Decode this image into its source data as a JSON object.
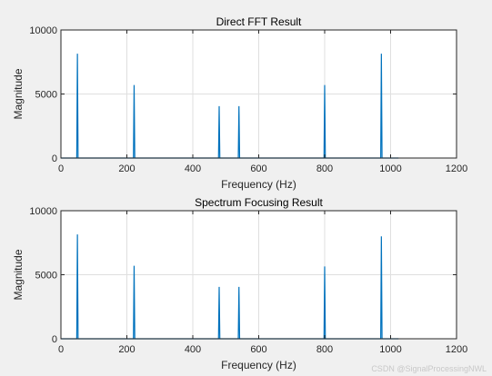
{
  "figure": {
    "background": "#f0f0f0",
    "axes_background": "#ffffff",
    "line_color": "#0072bd",
    "grid_color": "#dfdfdf"
  },
  "watermark": "CSDN @SignalProcessingNWL",
  "chart_data": [
    {
      "type": "line",
      "title": "Direct FFT Result",
      "xlabel": "Frequency (Hz)",
      "ylabel": "Magnitude",
      "xlim": [
        0,
        1200
      ],
      "ylim": [
        0,
        10000
      ],
      "xticks": [
        0,
        200,
        400,
        600,
        800,
        1000,
        1200
      ],
      "yticks": [
        0,
        5000,
        10000
      ],
      "xtick_labels": [
        "0",
        "200",
        "400",
        "600",
        "800",
        "1000",
        "1200"
      ],
      "ytick_labels": [
        "0",
        "5000",
        "10000"
      ],
      "grid": true,
      "series": [
        {
          "x": [
            0,
            48,
            50,
            52,
            220,
            222,
            224,
            478,
            480,
            482,
            538,
            540,
            542,
            798,
            800,
            802,
            970,
            972,
            974,
            1024
          ],
          "y": [
            0,
            0,
            8150,
            0,
            0,
            5700,
            0,
            0,
            4050,
            0,
            0,
            4050,
            0,
            0,
            5700,
            0,
            0,
            8150,
            0,
            0
          ]
        }
      ]
    },
    {
      "type": "line",
      "title": "Spectrum Focusing Result",
      "xlabel": "Frequency (Hz)",
      "ylabel": "Magnitude",
      "xlim": [
        0,
        1200
      ],
      "ylim": [
        0,
        10000
      ],
      "xticks": [
        0,
        200,
        400,
        600,
        800,
        1000,
        1200
      ],
      "yticks": [
        0,
        5000,
        10000
      ],
      "xtick_labels": [
        "0",
        "200",
        "400",
        "600",
        "800",
        "1000",
        "1200"
      ],
      "ytick_labels": [
        "0",
        "5000",
        "10000"
      ],
      "grid": true,
      "series": [
        {
          "x": [
            0,
            48,
            50,
            52,
            220,
            222,
            224,
            478,
            480,
            482,
            538,
            540,
            542,
            798,
            800,
            802,
            970,
            972,
            974,
            1024
          ],
          "y": [
            0,
            0,
            8150,
            0,
            0,
            5700,
            0,
            0,
            4050,
            0,
            0,
            4050,
            0,
            0,
            5650,
            0,
            0,
            8000,
            0,
            0
          ]
        }
      ]
    }
  ]
}
